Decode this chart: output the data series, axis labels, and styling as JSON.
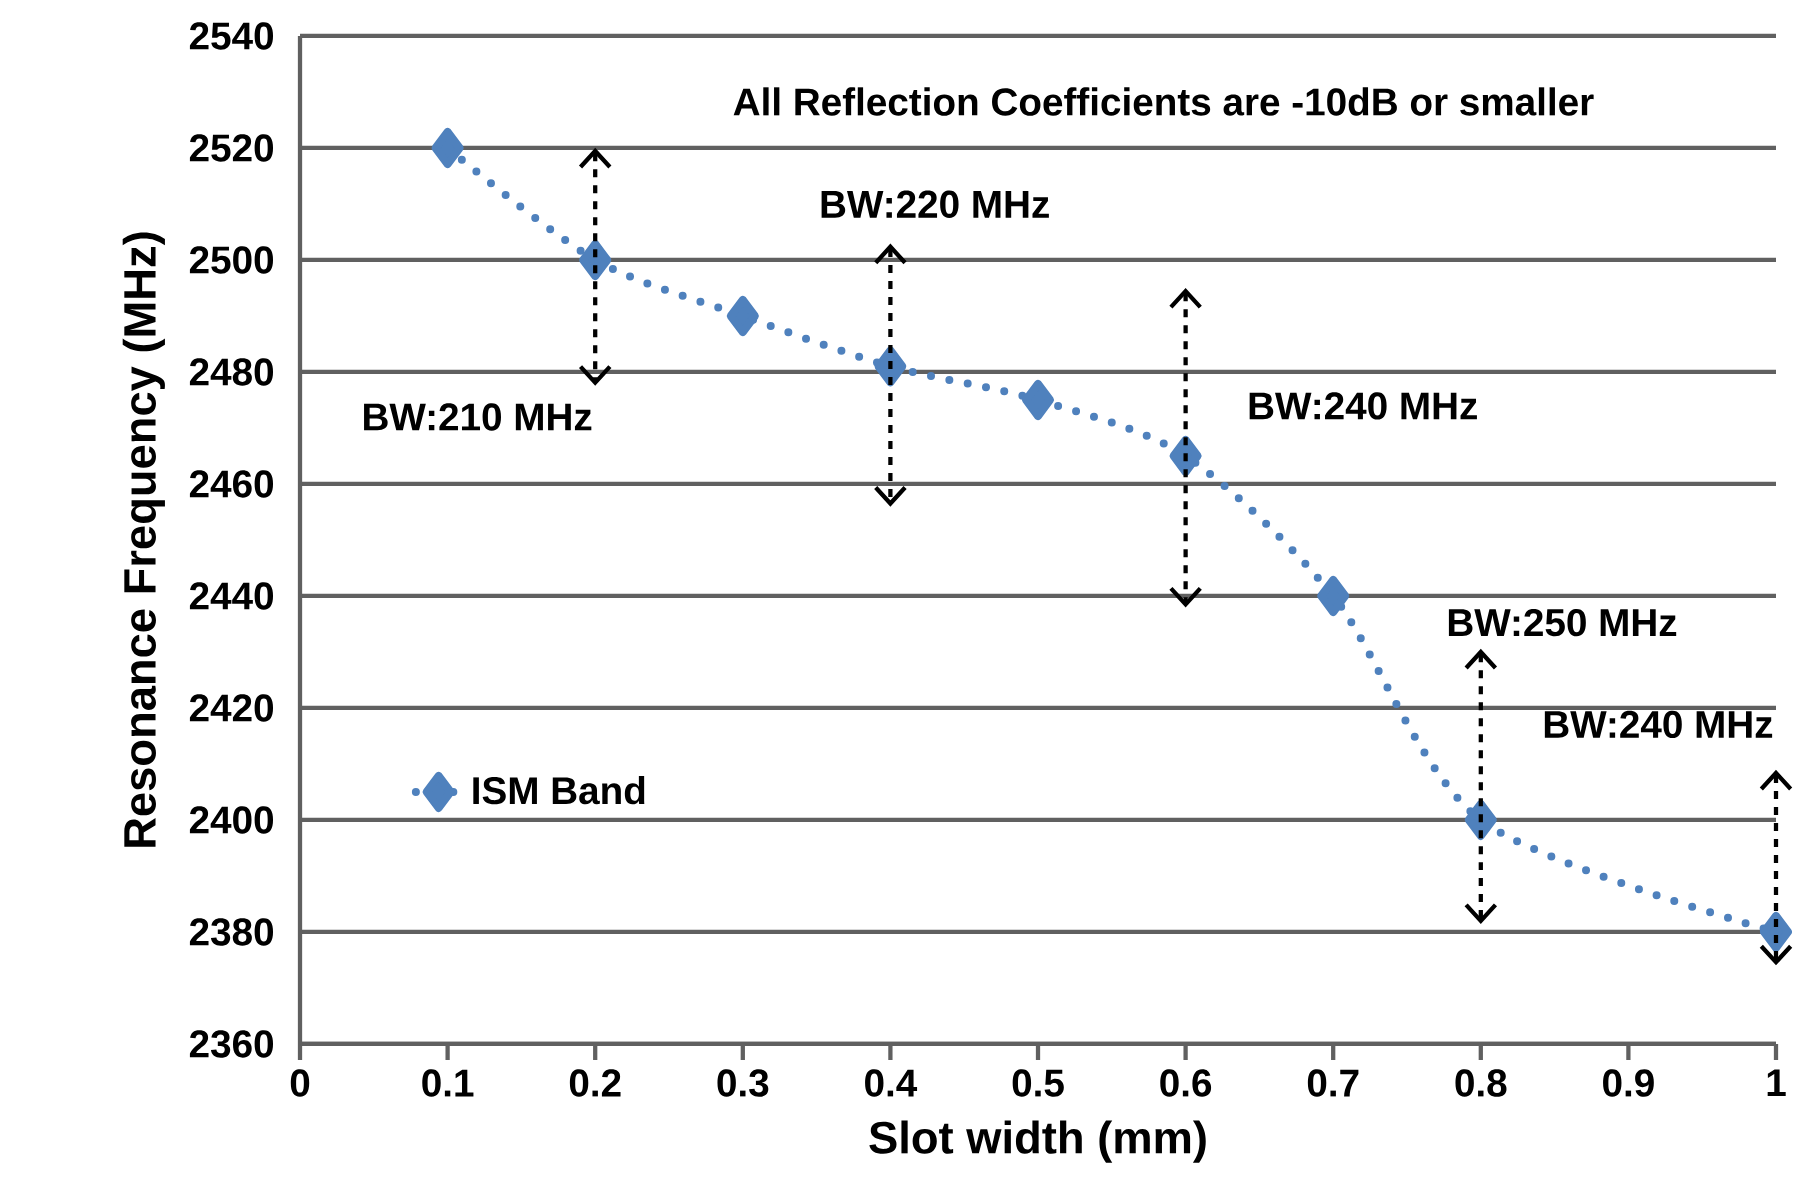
{
  "chart_data": {
    "type": "line",
    "xlabel": "Slot width (mm)",
    "ylabel": "Resonance  Frequency (MHz)",
    "x": [
      0.1,
      0.2,
      0.3,
      0.4,
      0.5,
      0.6,
      0.7,
      0.8,
      1.0
    ],
    "series": [
      {
        "name": "ISM Band",
        "color": "#4f81bd",
        "values": [
          2520,
          2500,
          2490,
          2481,
          2475,
          2465,
          2440,
          2400,
          2380
        ]
      }
    ],
    "xlim": [
      0,
      1
    ],
    "xticks": [
      0,
      0.1,
      0.2,
      0.3,
      0.4,
      0.5,
      0.6,
      0.7,
      0.8,
      0.9,
      1
    ],
    "ylim": [
      2360,
      2540
    ],
    "yticks": [
      2360,
      2380,
      2400,
      2420,
      2440,
      2460,
      2480,
      2500,
      2520,
      2540
    ],
    "grid": "y",
    "legend": "left",
    "marker": "diamond",
    "line_style": "dotted",
    "annotations": [
      "All Reflection Coefficients are -10dB or smaller",
      "BW:210 MHz",
      "BW:220 MHz",
      "BW:240 MHz",
      "BW:250 MHz",
      "BW:240 MHz"
    ]
  }
}
